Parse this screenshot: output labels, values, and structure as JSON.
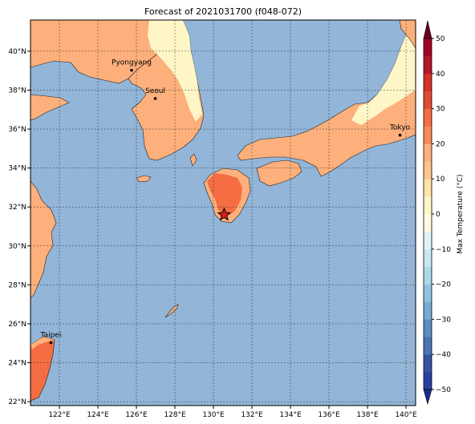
{
  "title": "Forecast of 2021031700 (f048-072)",
  "map": {
    "lon_range": [
      120.5,
      140.5
    ],
    "lat_range": [
      21.8,
      41.6
    ],
    "lon_ticks": [
      {
        "value": 122,
        "label": "122°E"
      },
      {
        "value": 124,
        "label": "124°E"
      },
      {
        "value": 126,
        "label": "126°E"
      },
      {
        "value": 128,
        "label": "128°E"
      },
      {
        "value": 130,
        "label": "130°E"
      },
      {
        "value": 132,
        "label": "132°E"
      },
      {
        "value": 134,
        "label": "134°E"
      },
      {
        "value": 136,
        "label": "136°E"
      },
      {
        "value": 138,
        "label": "138°E"
      },
      {
        "value": 140,
        "label": "140°E"
      }
    ],
    "lat_ticks": [
      {
        "value": 22,
        "label": "22°N"
      },
      {
        "value": 24,
        "label": "24°N"
      },
      {
        "value": 26,
        "label": "26°N"
      },
      {
        "value": 28,
        "label": "28°N"
      },
      {
        "value": 30,
        "label": "30°N"
      },
      {
        "value": 32,
        "label": "32°N"
      },
      {
        "value": 34,
        "label": "34°N"
      },
      {
        "value": 36,
        "label": "36°N"
      },
      {
        "value": 38,
        "label": "38°N"
      },
      {
        "value": 40,
        "label": "40°N"
      }
    ],
    "cities": [
      {
        "name": "Pyongyang",
        "lon": 125.75,
        "lat": 39.02
      },
      {
        "name": "Seoul",
        "lon": 126.98,
        "lat": 37.57
      },
      {
        "name": "Tokyo",
        "lon": 139.69,
        "lat": 35.69
      },
      {
        "name": "Taipei",
        "lon": 121.56,
        "lat": 25.03
      }
    ],
    "marker": {
      "lon": 130.56,
      "lat": 31.6,
      "symbol": "star",
      "color": "#e41a1c"
    }
  },
  "colorbar": {
    "label": "Max Temperature (°C)",
    "levels": [
      -50,
      -40,
      -30,
      -20,
      -10,
      0,
      10,
      20,
      30,
      40,
      50
    ],
    "tick_labels": [
      "−50",
      "−40",
      "−30",
      "−20",
      "−10",
      "0",
      "10",
      "20",
      "30",
      "40",
      "50"
    ],
    "colors": [
      "#1b2b8c",
      "#313695",
      "#4575b4",
      "#74add1",
      "#abd9e9",
      "#e0f3f8",
      "#fff6c8",
      "#fdba82",
      "#f46d43",
      "#d73027",
      "#a50026",
      "#67001f"
    ],
    "extend": "both"
  },
  "colors": {
    "ocean": "#92b5d8",
    "land_warm": "#fdb07c",
    "land_cool": "#fff6c8",
    "land_hot": "#f46d43"
  }
}
